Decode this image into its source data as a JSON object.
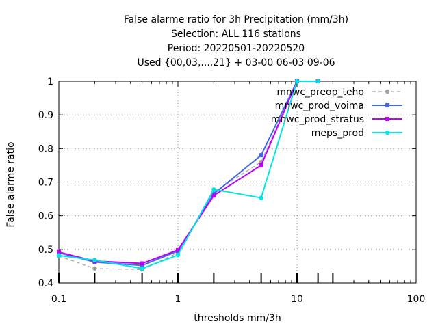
{
  "chart_data": {
    "type": "line",
    "title_lines": [
      "False alarme ratio  for 3h Precipitation (mm/3h)",
      "Selection: ALL    116 stations",
      "Period: 20220501-20220520",
      "Used {00,03,...,21} + 03-00 06-03 09-06"
    ],
    "xlabel": "thresholds mm/3h",
    "ylabel": "False alarme ratio",
    "xscale": "log",
    "xlim": [
      0.1,
      100
    ],
    "ylim": [
      0.4,
      1.0
    ],
    "x_ticks": [
      "0.1",
      "1",
      "10",
      "100"
    ],
    "y_ticks": [
      "0.4",
      "0.5",
      "0.6",
      "0.7",
      "0.8",
      "0.9",
      "1"
    ],
    "grid": true,
    "legend_position": "top-right",
    "threshold_marks": [
      0.1,
      0.2,
      0.5,
      1,
      2,
      5,
      10,
      15,
      20
    ],
    "series": [
      {
        "name": "mnwc_preop_teho",
        "color": "#a0a0a0",
        "dashed": true,
        "marker": "circle",
        "x": [
          0.1,
          0.2,
          0.5,
          1,
          2,
          5,
          10,
          15
        ],
        "y": [
          0.48,
          0.443,
          0.44,
          0.49,
          0.67,
          0.76,
          1.0,
          1.0
        ]
      },
      {
        "name": "mnwc_prod_voima",
        "color": "#4169e1",
        "dashed": false,
        "marker": "square",
        "x": [
          0.1,
          0.2,
          0.5,
          1,
          2,
          5,
          10,
          15
        ],
        "y": [
          0.49,
          0.462,
          0.452,
          0.495,
          0.665,
          0.78,
          1.0,
          1.0
        ]
      },
      {
        "name": "mnwc_prod_stratus",
        "color": "#c000ff",
        "dashed": false,
        "marker": "square",
        "x": [
          0.1,
          0.2,
          0.5,
          1,
          2,
          5,
          10,
          15
        ],
        "y": [
          0.492,
          0.465,
          0.458,
          0.498,
          0.66,
          0.75,
          1.0,
          1.0
        ]
      },
      {
        "name": "meps_prod",
        "color": "#00e5e5",
        "dashed": false,
        "marker": "circle",
        "x": [
          0.1,
          0.2,
          0.5,
          1,
          2,
          5,
          10,
          15
        ],
        "y": [
          0.482,
          0.468,
          0.443,
          0.483,
          0.678,
          0.653,
          1.0,
          1.0
        ]
      }
    ]
  }
}
